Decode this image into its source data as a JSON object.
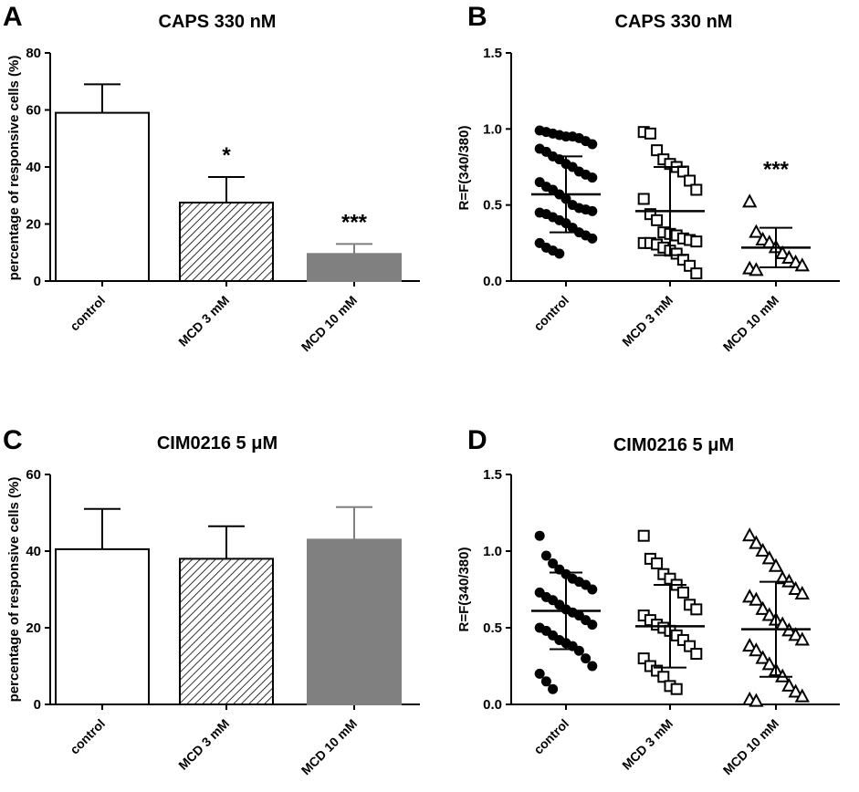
{
  "colors": {
    "ink": "#000000",
    "white": "#ffffff",
    "gray": "#808080"
  },
  "chart_data": [
    {
      "panel": "A",
      "type": "bar",
      "title": "CAPS 330 nM",
      "ylabel": "percentage of responsive cells (%)",
      "ylim": [
        0,
        80
      ],
      "yticks": [
        0,
        20,
        40,
        60,
        80
      ],
      "categories": [
        "control",
        "MCD 3 mM",
        "MCD 10 mM"
      ],
      "values": [
        59,
        27.5,
        9.5
      ],
      "errors": [
        10,
        9,
        3.5
      ],
      "fills": [
        "white",
        "hatch",
        "gray"
      ],
      "significance": [
        "",
        "*",
        "***"
      ]
    },
    {
      "panel": "B",
      "type": "scatter",
      "title": "CAPS 330 nM",
      "ylabel": "R=F(340/380)",
      "ylim": [
        0,
        1.5
      ],
      "yticks": [
        "0.0",
        "0.5",
        "1.0",
        "1.5"
      ],
      "categories": [
        "control",
        "MCD 3 mM",
        "MCD 10 mM"
      ],
      "markers": [
        "circle",
        "square",
        "triangle"
      ],
      "means": [
        0.57,
        0.46,
        0.22
      ],
      "sd": [
        0.25,
        0.29,
        0.13
      ],
      "significance": [
        "",
        "",
        "***"
      ],
      "points": [
        [
          0.99,
          0.98,
          0.97,
          0.96,
          0.95,
          0.95,
          0.94,
          0.92,
          0.9,
          0.87,
          0.85,
          0.82,
          0.8,
          0.77,
          0.75,
          0.72,
          0.7,
          0.68,
          0.65,
          0.62,
          0.6,
          0.57,
          0.54,
          0.5,
          0.48,
          0.47,
          0.46,
          0.45,
          0.44,
          0.42,
          0.4,
          0.38,
          0.35,
          0.32,
          0.3,
          0.28,
          0.25,
          0.22,
          0.2,
          0.18
        ],
        [
          0.98,
          0.97,
          0.86,
          0.8,
          0.77,
          0.75,
          0.72,
          0.66,
          0.6,
          0.54,
          0.44,
          0.4,
          0.32,
          0.31,
          0.3,
          0.28,
          0.27,
          0.26,
          0.25,
          0.25,
          0.24,
          0.22,
          0.2,
          0.18,
          0.14,
          0.1,
          0.05
        ],
        [
          0.52,
          0.32,
          0.27,
          0.25,
          0.22,
          0.18,
          0.15,
          0.12,
          0.1,
          0.08,
          0.07
        ]
      ]
    },
    {
      "panel": "C",
      "type": "bar",
      "title": "CIM0216 5 μM",
      "ylabel": "percentage of responsive cells (%)",
      "ylim": [
        0,
        60
      ],
      "yticks": [
        0,
        20,
        40,
        60
      ],
      "categories": [
        "control",
        "MCD 3 mM",
        "MCD 10 mM"
      ],
      "values": [
        40.5,
        38,
        43
      ],
      "errors": [
        10.5,
        8.5,
        8.5
      ],
      "fills": [
        "white",
        "hatch",
        "gray"
      ],
      "significance": [
        "",
        "",
        ""
      ]
    },
    {
      "panel": "D",
      "type": "scatter",
      "title": "CIM0216 5 μM",
      "ylabel": "R=F(340/380)",
      "ylim": [
        0,
        1.5
      ],
      "yticks": [
        "0.0",
        "0.5",
        "1.0",
        "1.5"
      ],
      "categories": [
        "control",
        "MCD 3 mM",
        "MCD 10 mM"
      ],
      "markers": [
        "circle",
        "square",
        "triangle"
      ],
      "means": [
        0.61,
        0.51,
        0.49
      ],
      "sd": [
        0.25,
        0.27,
        0.31
      ],
      "significance": [
        "",
        "",
        ""
      ],
      "points": [
        [
          1.1,
          0.97,
          0.92,
          0.88,
          0.85,
          0.82,
          0.8,
          0.78,
          0.75,
          0.73,
          0.7,
          0.68,
          0.65,
          0.62,
          0.6,
          0.58,
          0.55,
          0.52,
          0.5,
          0.48,
          0.45,
          0.42,
          0.4,
          0.38,
          0.35,
          0.3,
          0.25,
          0.2,
          0.15,
          0.1
        ],
        [
          1.1,
          0.95,
          0.92,
          0.85,
          0.82,
          0.78,
          0.73,
          0.65,
          0.62,
          0.58,
          0.55,
          0.52,
          0.5,
          0.48,
          0.45,
          0.42,
          0.38,
          0.33,
          0.3,
          0.25,
          0.22,
          0.18,
          0.12,
          0.1
        ],
        [
          1.1,
          1.05,
          1.0,
          0.95,
          0.9,
          0.82,
          0.8,
          0.75,
          0.72,
          0.7,
          0.68,
          0.62,
          0.58,
          0.55,
          0.52,
          0.48,
          0.45,
          0.42,
          0.38,
          0.35,
          0.3,
          0.26,
          0.22,
          0.18,
          0.12,
          0.08,
          0.05,
          0.03,
          0.02
        ]
      ]
    }
  ]
}
